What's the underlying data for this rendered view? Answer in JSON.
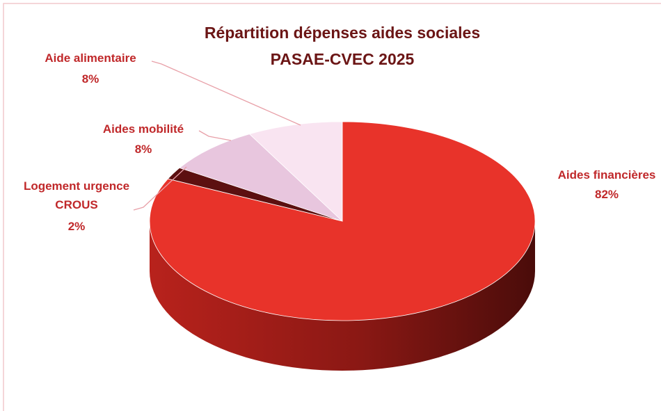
{
  "chart_data": {
    "type": "pie3d",
    "title": [
      "Répartition dépenses aides sociales",
      "PASAE-CVEC 2025"
    ],
    "categories": [
      "Aides financières",
      "Logement urgence CROUS",
      "Aides mobilité",
      "Aide alimentaire"
    ],
    "values": [
      82,
      2,
      8,
      8
    ],
    "value_labels": [
      "82%",
      "2%",
      "8%",
      "8%"
    ],
    "colors": [
      "#e8332a",
      "#5c1010",
      "#e8c6de",
      "#f9e4f1"
    ]
  }
}
